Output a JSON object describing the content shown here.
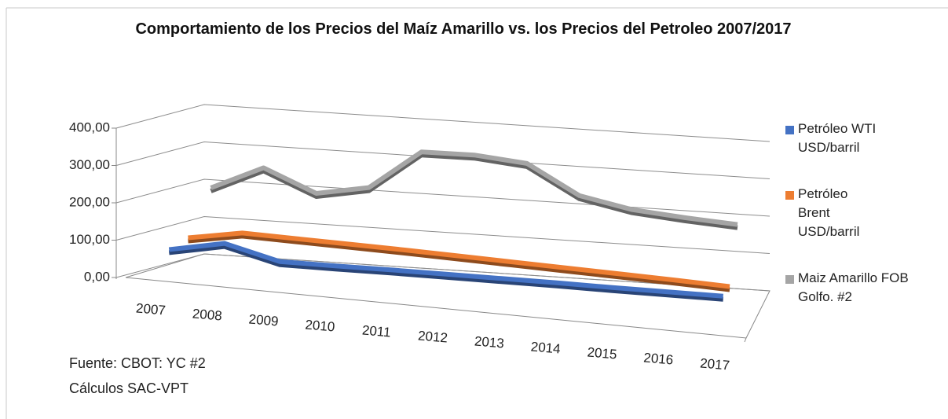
{
  "chart_data": {
    "type": "line3d",
    "title": "Comportamiento de los Precios del Maíz Amarillo vs. los Precios del Petroleo 2007/2017",
    "categories": [
      "2007",
      "2008",
      "2009",
      "2010",
      "2011",
      "2012",
      "2013",
      "2014",
      "2015",
      "2016",
      "2017"
    ],
    "series": [
      {
        "name": "Petróleo WTI USD/barril",
        "color": "#4472c4",
        "values": [
          69,
          99,
          64,
          66,
          69,
          71,
          73,
          75,
          76,
          78,
          80
        ]
      },
      {
        "name": "Petróleo Brent USD/barril",
        "color": "#ed7d31",
        "values": [
          84,
          109,
          106,
          103,
          100,
          96,
          92,
          88,
          84,
          80,
          75
        ]
      },
      {
        "name": "Maiz Amarillo FOB Golfo. #2",
        "color": "#a5a5a5",
        "values": [
          198,
          262,
          204,
          230,
          336,
          338,
          326,
          250,
          223,
          212,
          204
        ]
      }
    ],
    "ylim": [
      0,
      400
    ],
    "yticks": [
      {
        "value": 0,
        "label": "0,00"
      },
      {
        "value": 100,
        "label": "100,00"
      },
      {
        "value": 200,
        "label": "200,00"
      },
      {
        "value": 300,
        "label": "300,00"
      },
      {
        "value": 400,
        "label": "400,00"
      }
    ],
    "grid": true,
    "legend": "right",
    "notes": [
      "Fuente: CBOT: YC #2",
      "Cálculos SAC-VPT"
    ]
  }
}
